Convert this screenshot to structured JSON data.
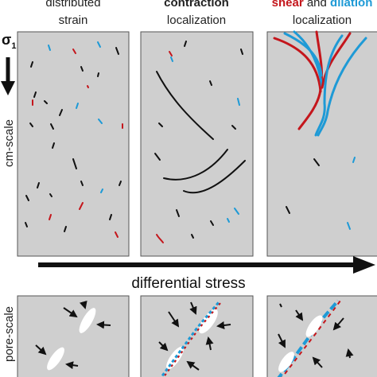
{
  "header": {
    "columns": [
      {
        "line1": "distributed",
        "line2": "strain"
      },
      {
        "line1": "contraction",
        "line2": "localization"
      },
      {
        "line1_parts": [
          "shear",
          "and",
          "dilation"
        ],
        "line2": "localization"
      }
    ]
  },
  "axis": {
    "sigma": "σ",
    "sigma_sub": "1",
    "title": "differential stress"
  },
  "rows": [
    "cm-scale",
    "pore-scale"
  ]
}
